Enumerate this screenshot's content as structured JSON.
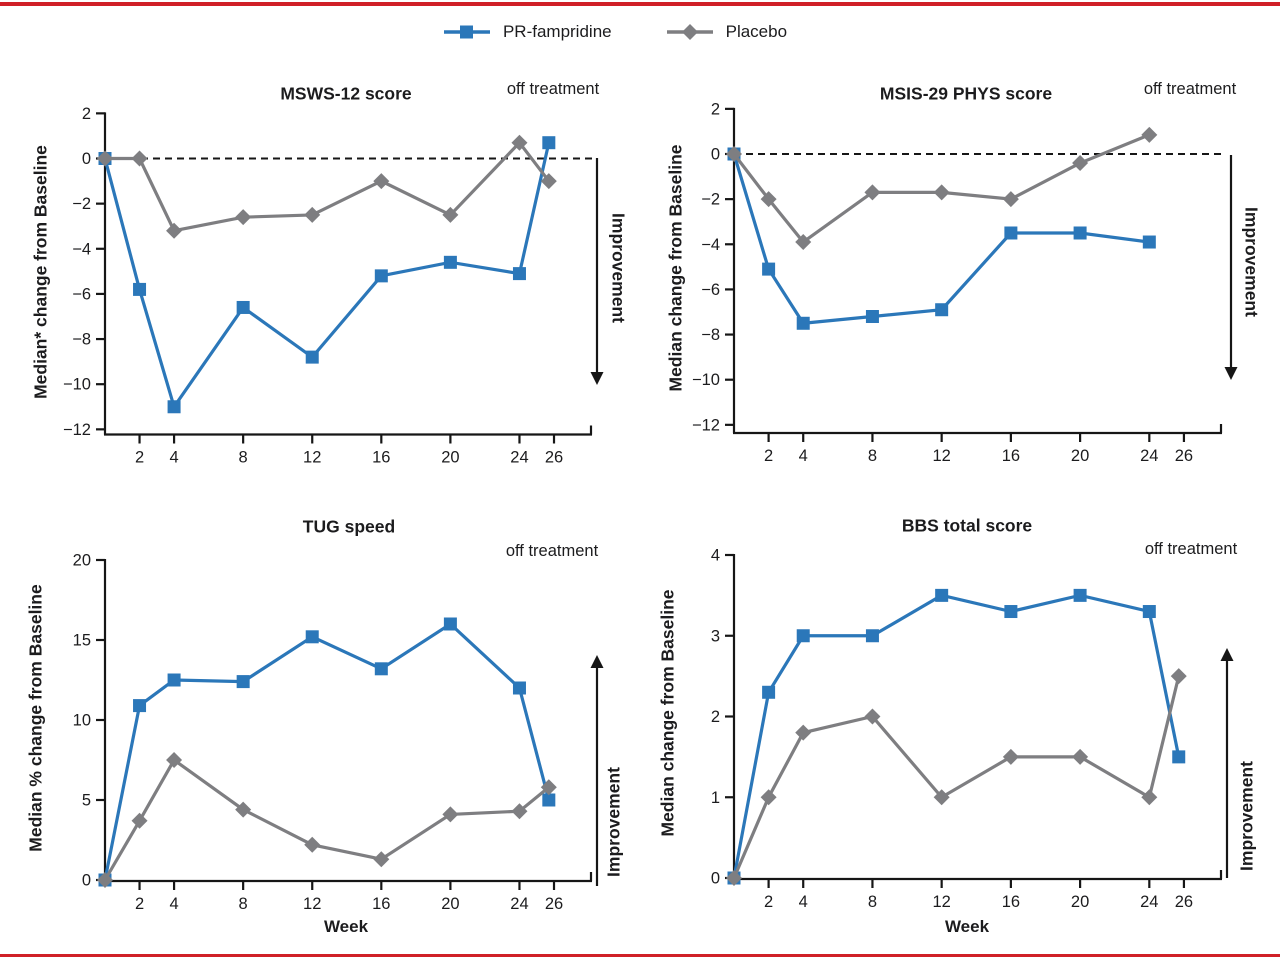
{
  "figure": {
    "border_color": "#d02027",
    "background": "#ffffff",
    "text_color": "#1c1c1e",
    "axis_color": "#161616",
    "legend": {
      "position": "top-center",
      "items": [
        {
          "label": "PR-fampridine",
          "marker": "square",
          "color": "#2b77b9"
        },
        {
          "label": "Placebo",
          "marker": "diamond",
          "color": "#7e7e81"
        }
      ]
    }
  },
  "chart_data": [
    {
      "type": "line",
      "title": "MSWS-12 score",
      "ylabel": "Median* change from Baseline",
      "xlabel": "",
      "off_treatment_label": "off treatment",
      "improvement_label": "Improvement",
      "improvement_direction": "down",
      "ylim": [
        -12,
        2
      ],
      "yticks": [
        2,
        0,
        -2,
        -4,
        -6,
        -8,
        -10,
        -12
      ],
      "xticks": [
        2,
        4,
        8,
        12,
        16,
        20,
        24,
        26
      ],
      "zero_line_dashed": true,
      "grid": false,
      "series": [
        {
          "name": "PR-fampridine",
          "marker": "square",
          "color": "#2b77b9",
          "x": [
            0,
            2,
            4,
            8,
            12,
            16,
            20,
            24,
            26
          ],
          "y": [
            0,
            -5.8,
            -11.0,
            -6.6,
            -8.8,
            -5.2,
            -4.6,
            -5.1,
            0.7
          ]
        },
        {
          "name": "Placebo",
          "marker": "diamond",
          "color": "#7e7e81",
          "x": [
            0,
            2,
            4,
            8,
            12,
            16,
            20,
            24,
            26
          ],
          "y": [
            0,
            0,
            -3.2,
            -2.6,
            -2.5,
            -1.0,
            -2.5,
            0.7,
            -1.0
          ]
        }
      ]
    },
    {
      "type": "line",
      "title": "MSIS-29 PHYS score",
      "ylabel": "Median change from Baseline",
      "xlabel": "",
      "off_treatment_label": "off treatment",
      "improvement_label": "Improvement",
      "improvement_direction": "down",
      "ylim": [
        -12,
        2
      ],
      "yticks": [
        2,
        0,
        -2,
        -4,
        -6,
        -8,
        -10,
        -12
      ],
      "xticks": [
        2,
        4,
        8,
        12,
        16,
        20,
        24,
        26
      ],
      "zero_line_dashed": true,
      "grid": false,
      "series": [
        {
          "name": "PR-fampridine",
          "marker": "square",
          "color": "#2b77b9",
          "x": [
            0,
            2,
            4,
            8,
            12,
            16,
            20,
            24
          ],
          "y": [
            0,
            -5.1,
            -7.5,
            -7.2,
            -6.9,
            -3.5,
            -3.5,
            -3.9
          ]
        },
        {
          "name": "Placebo",
          "marker": "diamond",
          "color": "#7e7e81",
          "x": [
            0,
            2,
            4,
            8,
            12,
            16,
            20,
            24
          ],
          "y": [
            0,
            -2.0,
            -3.9,
            -1.7,
            -1.7,
            -2.0,
            -0.4,
            0.85
          ]
        }
      ]
    },
    {
      "type": "line",
      "title": "TUG speed",
      "ylabel": "Median % change from Baseline",
      "xlabel": "Week",
      "off_treatment_label": "off treatment",
      "improvement_label": "Improvement",
      "improvement_direction": "up",
      "ylim": [
        0,
        20
      ],
      "yticks": [
        20,
        15,
        10,
        5,
        0
      ],
      "xticks": [
        2,
        4,
        8,
        12,
        16,
        20,
        24,
        26
      ],
      "zero_line_dashed": false,
      "grid": false,
      "series": [
        {
          "name": "PR-fampridine",
          "marker": "square",
          "color": "#2b77b9",
          "x": [
            0,
            2,
            4,
            8,
            12,
            16,
            20,
            24,
            26
          ],
          "y": [
            0,
            10.9,
            12.5,
            12.4,
            15.2,
            13.2,
            16.0,
            12.0,
            5.0
          ]
        },
        {
          "name": "Placebo",
          "marker": "diamond",
          "color": "#7e7e81",
          "x": [
            0,
            2,
            4,
            8,
            12,
            16,
            20,
            24,
            26
          ],
          "y": [
            0,
            3.7,
            7.5,
            4.4,
            2.2,
            1.3,
            4.1,
            4.3,
            5.8
          ]
        }
      ]
    },
    {
      "type": "line",
      "title": "BBS total score",
      "ylabel": "Median change from Baseline",
      "xlabel": "Week",
      "off_treatment_label": "off treatment",
      "improvement_label": "Improvement",
      "improvement_direction": "up",
      "ylim": [
        0,
        4
      ],
      "yticks": [
        4,
        3,
        2,
        1,
        0
      ],
      "xticks": [
        2,
        4,
        8,
        12,
        16,
        20,
        24,
        26
      ],
      "zero_line_dashed": false,
      "grid": false,
      "series": [
        {
          "name": "PR-fampridine",
          "marker": "square",
          "color": "#2b77b9",
          "x": [
            0,
            2,
            4,
            8,
            12,
            16,
            20,
            24,
            26
          ],
          "y": [
            0,
            2.3,
            3.0,
            3.0,
            3.5,
            3.3,
            3.5,
            3.3,
            1.5
          ]
        },
        {
          "name": "Placebo",
          "marker": "diamond",
          "color": "#7e7e81",
          "x": [
            0,
            2,
            4,
            8,
            12,
            16,
            20,
            24,
            26
          ],
          "y": [
            0,
            1.0,
            1.8,
            2.0,
            1.0,
            1.5,
            1.5,
            1.0,
            2.5
          ]
        }
      ]
    }
  ]
}
